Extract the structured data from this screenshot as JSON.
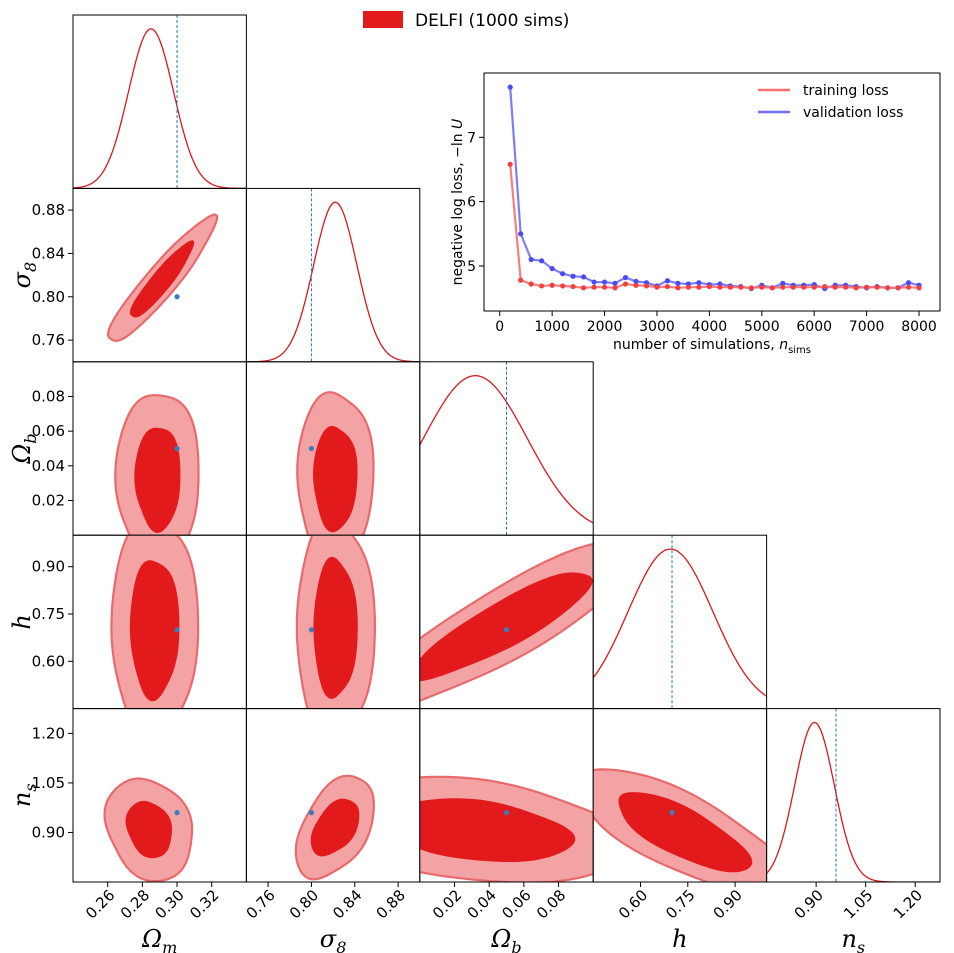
{
  "legend": {
    "label": "DELFI (1000 sims)",
    "color": "#e31a1c"
  },
  "colors": {
    "inner": "#e31a1c",
    "outer": "#f4a3a4",
    "outer_edge": "#e86a6c",
    "truth_point": "#3a7dbe",
    "truth_line": "#1f77b4",
    "train": "#f77070",
    "val": "#6f6ff7",
    "train_pt": "#f24040",
    "val_pt": "#4a4af2"
  },
  "chart_data": [
    {
      "type": "corner",
      "parameters": [
        {
          "key": "Om",
          "label": "Ω",
          "sub": "m",
          "range": [
            0.24,
            0.34
          ],
          "ticks": [
            "0.26",
            "0.28",
            "0.30",
            "0.32"
          ],
          "truth": 0.3
        },
        {
          "key": "s8",
          "label": "σ",
          "sub": "8",
          "range": [
            0.74,
            0.9
          ],
          "ticks": [
            "0.76",
            "0.80",
            "0.84",
            "0.88"
          ],
          "truth": 0.8
        },
        {
          "key": "Ob",
          "label": "Ω",
          "sub": "b",
          "range": [
            0.0,
            0.1
          ],
          "ticks": [
            "0.02",
            "0.04",
            "0.06",
            "0.08"
          ],
          "truth": 0.05
        },
        {
          "key": "h",
          "label": "h",
          "sub": "",
          "range": [
            0.45,
            1.0
          ],
          "ticks": [
            "0.60",
            "0.75",
            "0.90"
          ],
          "truth": 0.7
        },
        {
          "key": "ns",
          "label": "n",
          "sub": "s",
          "range": [
            0.75,
            1.275
          ],
          "ticks": [
            "0.90",
            "1.05",
            "1.20"
          ],
          "truth": 0.96
        }
      ],
      "marginals": [
        {
          "mean": 0.285,
          "sigma": 0.013,
          "skew": 0.0
        },
        {
          "mean": 0.822,
          "sigma": 0.02,
          "skew": 0.0
        },
        {
          "mean": 0.032,
          "sigma": 0.03,
          "skew": 0.0
        },
        {
          "mean": 0.695,
          "sigma": 0.135,
          "skew": 0.0
        },
        {
          "mean": 0.895,
          "sigma": 0.06,
          "skew": 0.0
        }
      ]
    },
    {
      "type": "line",
      "title": "",
      "xlabel": "number of simulations, ",
      "xlabel_math": "n",
      "xlabel_sub": "sims",
      "ylabel": "negative log loss, −ln",
      "ylabel_math": "U",
      "xlim": [
        -300,
        8400
      ],
      "ylim": [
        4.3,
        8.0
      ],
      "xticks": [
        "0",
        "1000",
        "2000",
        "3000",
        "4000",
        "5000",
        "6000",
        "7000",
        "8000"
      ],
      "yticks": [
        "5",
        "6",
        "7"
      ],
      "legend": {
        "placement": "top-right"
      },
      "x": [
        200,
        400,
        600,
        800,
        1000,
        1200,
        1400,
        1600,
        1800,
        2000,
        2200,
        2400,
        2600,
        2800,
        3000,
        3200,
        3400,
        3600,
        3800,
        4000,
        4200,
        4400,
        4600,
        4800,
        5000,
        5200,
        5400,
        5600,
        5800,
        6000,
        6200,
        6400,
        6600,
        6800,
        7000,
        7200,
        7400,
        7600,
        7800,
        8000
      ],
      "series": [
        {
          "name": "training loss",
          "values": [
            6.58,
            4.78,
            4.72,
            4.69,
            4.7,
            4.69,
            4.68,
            4.66,
            4.67,
            4.67,
            4.66,
            4.72,
            4.7,
            4.69,
            4.67,
            4.68,
            4.66,
            4.67,
            4.67,
            4.68,
            4.67,
            4.67,
            4.67,
            4.66,
            4.67,
            4.66,
            4.67,
            4.67,
            4.67,
            4.67,
            4.68,
            4.67,
            4.67,
            4.66,
            4.67,
            4.67,
            4.66,
            4.66,
            4.67,
            4.66
          ]
        },
        {
          "name": "validation loss",
          "values": [
            7.78,
            5.5,
            5.1,
            5.08,
            4.96,
            4.88,
            4.84,
            4.83,
            4.75,
            4.75,
            4.73,
            4.82,
            4.76,
            4.74,
            4.69,
            4.77,
            4.73,
            4.72,
            4.74,
            4.71,
            4.72,
            4.69,
            4.68,
            4.65,
            4.7,
            4.66,
            4.73,
            4.7,
            4.7,
            4.71,
            4.65,
            4.7,
            4.7,
            4.68,
            4.66,
            4.68,
            4.66,
            4.66,
            4.74,
            4.7
          ]
        }
      ]
    }
  ]
}
